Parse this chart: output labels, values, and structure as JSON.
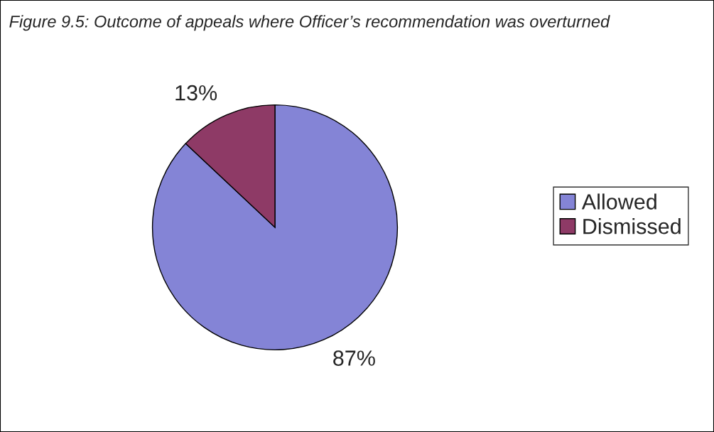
{
  "chart_data": {
    "type": "pie",
    "title": "Figure 9.5: Outcome of appeals where Officer’s recommendation was overturned",
    "categories": [
      "Allowed",
      "Dismissed"
    ],
    "values": [
      87,
      13
    ],
    "colors": [
      "#8484d6",
      "#8e3a66"
    ],
    "value_labels": [
      "87%",
      "13%"
    ],
    "legend": "right"
  }
}
